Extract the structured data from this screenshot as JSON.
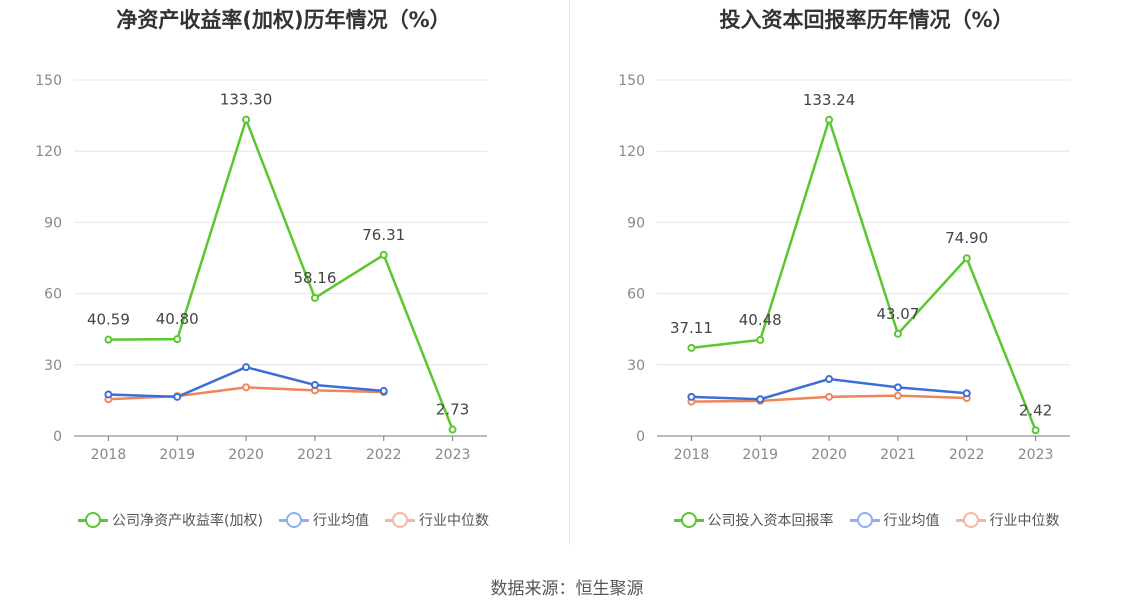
{
  "chart_data": [
    {
      "type": "line",
      "title": "净资产收益率(加权)历年情况（%）",
      "categories": [
        "2018",
        "2019",
        "2020",
        "2021",
        "2022",
        "2023"
      ],
      "ylim": [
        0,
        150
      ],
      "yticks": [
        0,
        30,
        60,
        90,
        120,
        150
      ],
      "grid": true,
      "legend_position": "bottom",
      "series": [
        {
          "name": "公司净资产收益率(加权)",
          "color": "#5ac72e",
          "values": [
            40.59,
            40.8,
            133.3,
            58.16,
            76.31,
            2.73
          ],
          "labels": [
            "40.59",
            "40.80",
            "133.30",
            "58.16",
            "76.31",
            "2.73"
          ]
        },
        {
          "name": "行业均值",
          "color": "#3b6fd6",
          "values": [
            17.5,
            16.5,
            29.0,
            21.5,
            19.0,
            null
          ],
          "labels": null
        },
        {
          "name": "行业中位数",
          "color": "#f0845a",
          "values": [
            15.5,
            16.8,
            20.5,
            19.2,
            18.5,
            null
          ],
          "labels": null
        }
      ]
    },
    {
      "type": "line",
      "title": "投入资本回报率历年情况（%）",
      "categories": [
        "2018",
        "2019",
        "2020",
        "2021",
        "2022",
        "2023"
      ],
      "ylim": [
        0,
        150
      ],
      "yticks": [
        0,
        30,
        60,
        90,
        120,
        150
      ],
      "grid": true,
      "legend_position": "bottom",
      "series": [
        {
          "name": "公司投入资本回报率",
          "color": "#5ac72e",
          "values": [
            37.11,
            40.48,
            133.24,
            43.07,
            74.9,
            2.42
          ],
          "labels": [
            "37.11",
            "40.48",
            "133.24",
            "43.07",
            "74.90",
            "2.42"
          ]
        },
        {
          "name": "行业均值",
          "color": "#3b6fd6",
          "values": [
            16.5,
            15.5,
            24.0,
            20.5,
            18.0,
            null
          ],
          "labels": null
        },
        {
          "name": "行业中位数",
          "color": "#f0845a",
          "values": [
            14.5,
            14.8,
            16.5,
            17.0,
            16.0,
            null
          ],
          "labels": null
        }
      ]
    }
  ],
  "legend_colors": {
    "公司": "#5ac72e",
    "行业均值": "#8fb0ef",
    "行业中位数": "#f6b7a0"
  },
  "source": "数据来源：恒生聚源"
}
